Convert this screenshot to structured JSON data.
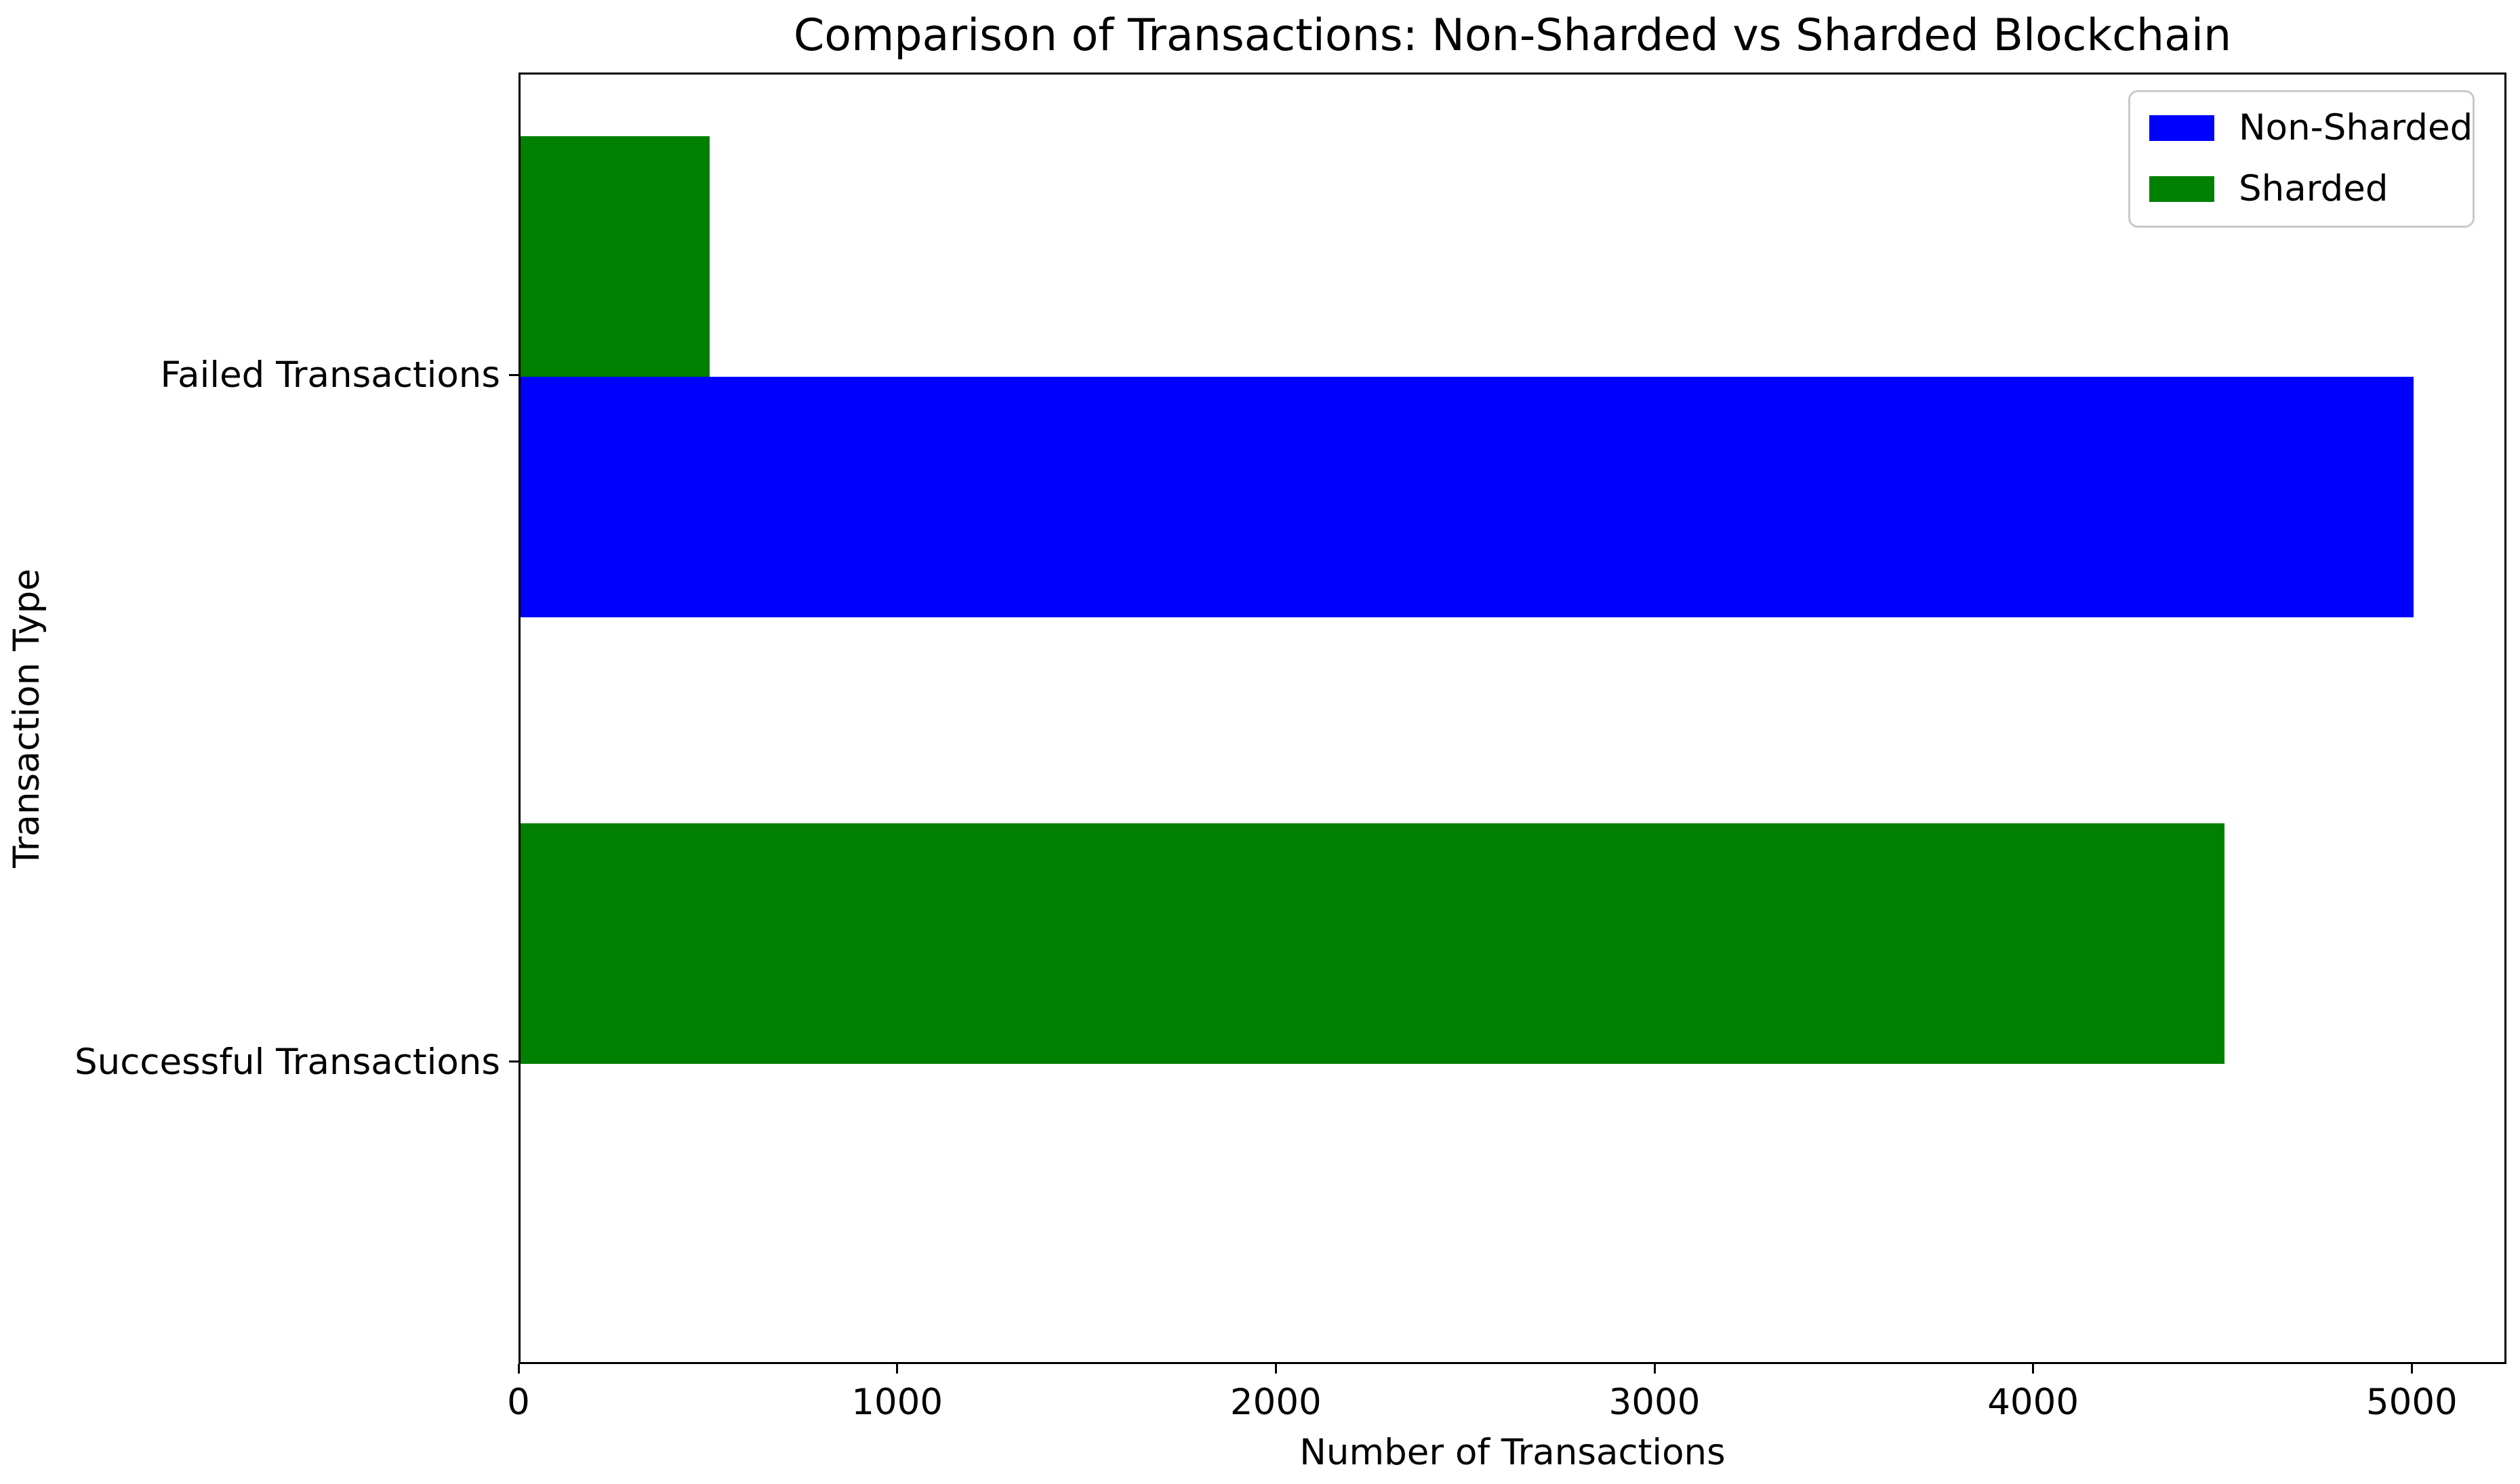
{
  "chart_data": {
    "type": "bar",
    "orientation": "horizontal",
    "title": "Comparison of Transactions: Non-Sharded vs Sharded Blockchain",
    "xlabel": "Number of Transactions",
    "ylabel": "Transaction Type",
    "categories": [
      "Failed Transactions",
      "Successful Transactions"
    ],
    "category_axis_positions": [
      1,
      0
    ],
    "series": [
      {
        "name": "Non-Sharded",
        "color": "#0000ff",
        "side_of_tick": "below",
        "values": [
          5000,
          0
        ]
      },
      {
        "name": "Sharded",
        "color": "#008000",
        "side_of_tick": "above",
        "values": [
          500,
          4500
        ]
      }
    ],
    "x_ticks": [
      0,
      1000,
      2000,
      3000,
      4000,
      5000
    ],
    "xlim": [
      0,
      5250
    ],
    "ylim": [
      -0.44,
      1.44
    ],
    "bar_height_units": 0.35,
    "grid": false,
    "legend": {
      "position": "upper right",
      "entries": [
        "Non-Sharded",
        "Sharded"
      ]
    },
    "colors": {
      "background": "#ffffff",
      "text": "#000000",
      "spine": "#000000",
      "legend_border": "#c9c9c9"
    }
  }
}
